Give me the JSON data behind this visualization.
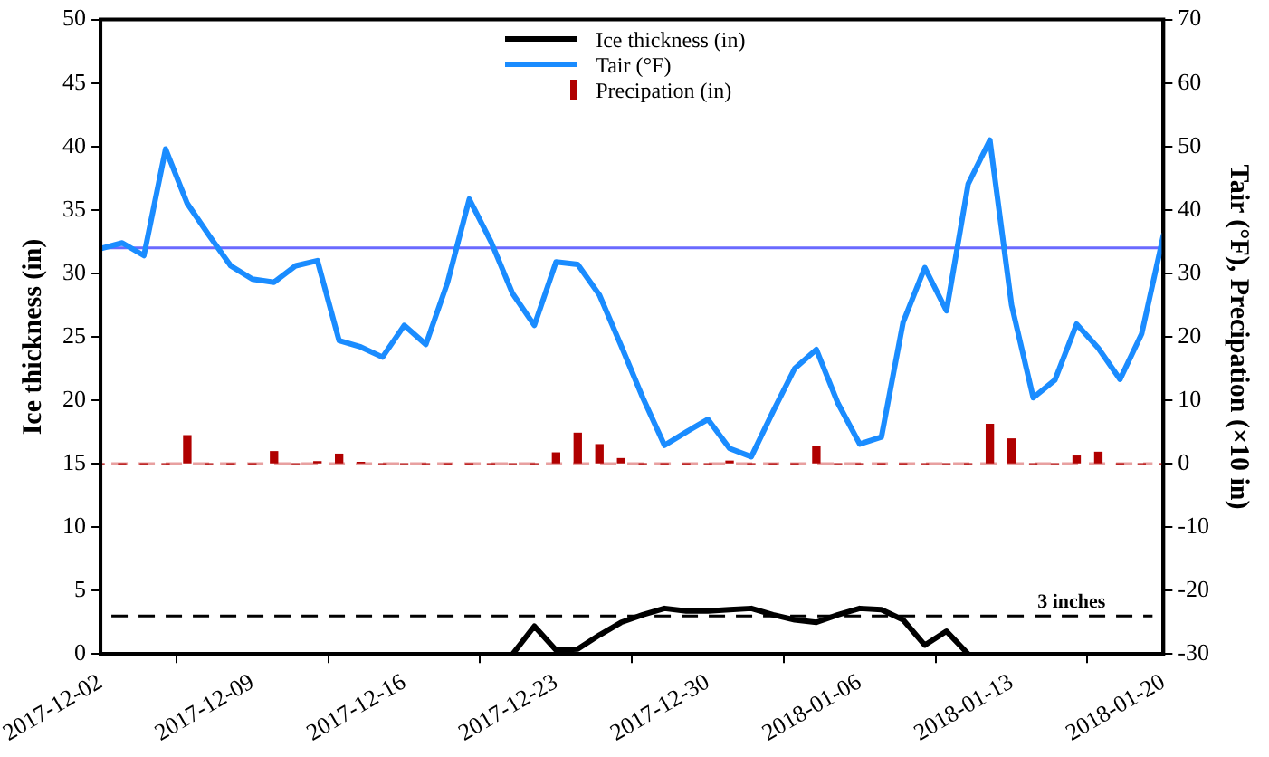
{
  "chart_data": {
    "type": "line",
    "ylabel": "Ice thickness (in)",
    "y2label": "Tair (°F), Precipation (×10 in)",
    "x": [
      "2017-12-02",
      "2017-12-03",
      "2017-12-04",
      "2017-12-05",
      "2017-12-06",
      "2017-12-07",
      "2017-12-08",
      "2017-12-09",
      "2017-12-10",
      "2017-12-11",
      "2017-12-12",
      "2017-12-13",
      "2017-12-14",
      "2017-12-15",
      "2017-12-16",
      "2017-12-17",
      "2017-12-18",
      "2017-12-19",
      "2017-12-20",
      "2017-12-21",
      "2017-12-22",
      "2017-12-23",
      "2017-12-24",
      "2017-12-25",
      "2017-12-26",
      "2017-12-27",
      "2017-12-28",
      "2017-12-29",
      "2017-12-30",
      "2017-12-31",
      "2018-01-01",
      "2018-01-02",
      "2018-01-03",
      "2018-01-04",
      "2018-01-05",
      "2018-01-06",
      "2018-01-07",
      "2018-01-08",
      "2018-01-09",
      "2018-01-10",
      "2018-01-11",
      "2018-01-12",
      "2018-01-13",
      "2018-01-14",
      "2018-01-15",
      "2018-01-16",
      "2018-01-17",
      "2018-01-18",
      "2018-01-19",
      "2018-01-20"
    ],
    "series": [
      {
        "name": "Ice thickness (in)",
        "color": "#000000",
        "values": [
          null,
          null,
          null,
          null,
          null,
          null,
          null,
          null,
          null,
          null,
          null,
          null,
          null,
          null,
          null,
          null,
          null,
          null,
          null,
          0,
          2.2,
          0.3,
          0.4,
          1.5,
          2.5,
          3.1,
          3.6,
          3.4,
          3.4,
          3.5,
          3.6,
          3.1,
          2.7,
          2.5,
          3.1,
          3.6,
          3.5,
          2.7,
          0.7,
          1.8,
          0,
          null,
          null,
          null,
          null,
          null,
          null,
          null,
          null,
          null
        ]
      },
      {
        "name": "Tair (°F)",
        "axis": "y2",
        "color": "#1a8cff",
        "values": [
          33.9,
          34.8,
          32.8,
          49.6,
          41,
          36,
          31.2,
          29.1,
          28.6,
          31.2,
          32,
          19.4,
          18.4,
          16.8,
          21.8,
          18.8,
          28.6,
          41.7,
          35,
          26.8,
          21.8,
          31.8,
          31.4,
          26.6,
          18.6,
          10.4,
          2.9,
          5,
          7,
          2.4,
          1.1,
          8.2,
          15,
          18,
          9.5,
          3.1,
          4.2,
          22.3,
          30.9,
          24.1,
          44.1,
          51,
          25,
          10.4,
          13.2,
          22,
          18.2,
          13.3,
          20.5,
          36
        ]
      },
      {
        "name": "Precipation (in)",
        "type": "bar",
        "axis": "y2",
        "color": "#b00000",
        "values": [
          0,
          0,
          0,
          0,
          4.4,
          0,
          0,
          0,
          1.9,
          0,
          0.3,
          1.5,
          0.2,
          0,
          0,
          0,
          0,
          0,
          0,
          0,
          0,
          1.7,
          4.8,
          3,
          0.8,
          0,
          0,
          0,
          0,
          0.4,
          0,
          0,
          0,
          2.7,
          0,
          0,
          0,
          0,
          0,
          0,
          0,
          6.2,
          3.9,
          0,
          0,
          1.2,
          1.8,
          0,
          0,
          0
        ]
      }
    ],
    "xlim": [
      "2017-12-02",
      "2018-01-20"
    ],
    "xticks": [
      "2017-12-02",
      "2017-12-09",
      "2017-12-16",
      "2017-12-23",
      "2017-12-30",
      "2018-01-06",
      "2018-01-13",
      "2018-01-20"
    ],
    "ylim": [
      0,
      50
    ],
    "yticks": [
      0,
      5,
      10,
      15,
      20,
      25,
      30,
      35,
      40,
      45,
      50
    ],
    "y2lim": [
      -30,
      70
    ],
    "y2ticks": [
      -30,
      -20,
      -10,
      0,
      10,
      20,
      30,
      40,
      50,
      60,
      70
    ],
    "ref_lines": [
      {
        "axis": "y",
        "value": 32,
        "color": "#6a6aff",
        "line_style": "solid"
      },
      {
        "axis": "y",
        "value": 3,
        "label": "3 inches",
        "color": "#000000",
        "line_style": "dashed"
      },
      {
        "axis": "y2",
        "value": 0,
        "color": "#e8a0a0",
        "line_style": "dashed"
      }
    ],
    "legend": "top",
    "grid": false,
    "marker": "none",
    "line_style": "solid"
  }
}
